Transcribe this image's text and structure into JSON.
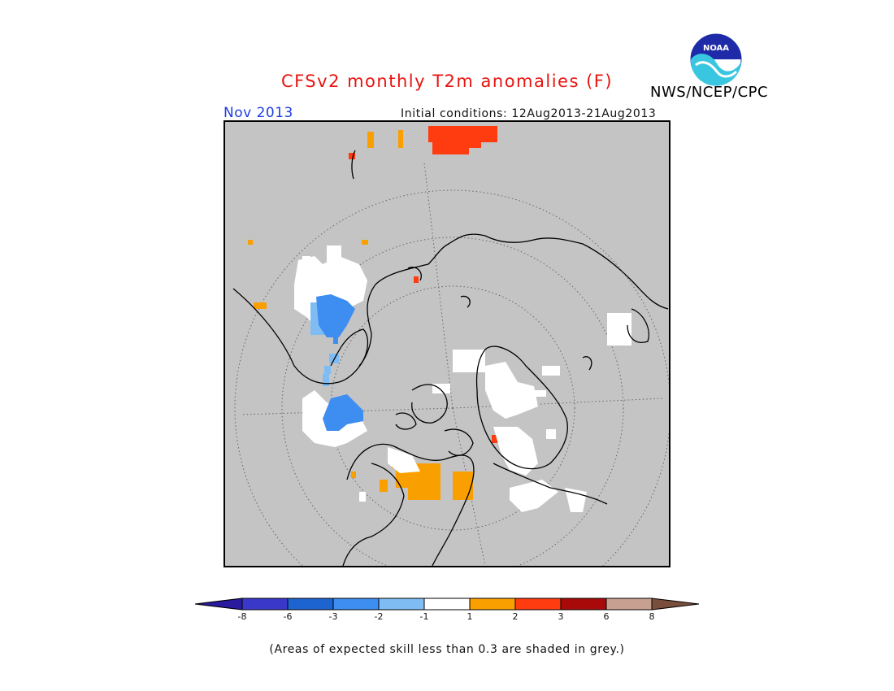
{
  "title": "CFSv2 monthly T2m anomalies (F)",
  "organization": "NWS/NCEP/CPC",
  "logo_text": "NOAA",
  "forecast_month": "Nov 2013",
  "initial_conditions": "Initial conditions: 12Aug2013-21Aug2013",
  "footnote": "(Areas of expected skill less than 0.3 are shaded in grey.)",
  "colors": {
    "title": "#e8140f",
    "month": "#1e3ce6",
    "map_grey": "#c4c4c4"
  },
  "colorbar": {
    "bins": [
      {
        "color": "#2a1a9e"
      },
      {
        "color": "#3a38c9"
      },
      {
        "color": "#1e64d0"
      },
      {
        "color": "#3d8ef0"
      },
      {
        "color": "#80bcf4"
      },
      {
        "color": "#ffffff"
      },
      {
        "color": "#fa9f00"
      },
      {
        "color": "#ff3b10"
      },
      {
        "color": "#a80a0a"
      },
      {
        "color": "#c8a092"
      },
      {
        "color": "#7a4e3c"
      }
    ],
    "ticks": [
      "-8",
      "-6",
      "-3",
      "-2",
      "-1",
      "1",
      "2",
      "3",
      "6",
      "8"
    ]
  }
}
